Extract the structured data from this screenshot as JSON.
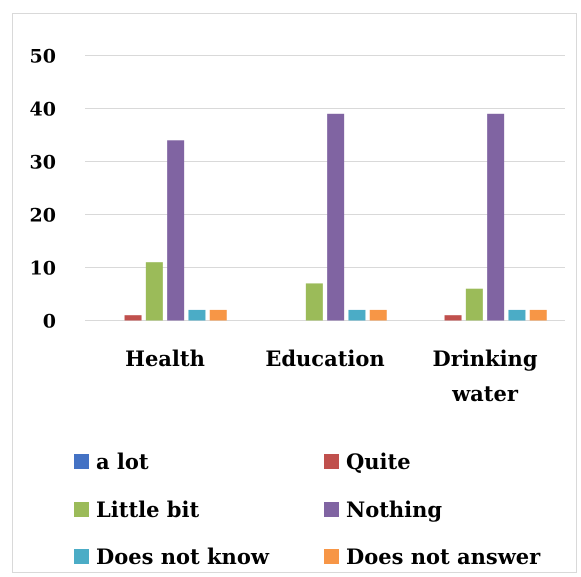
{
  "chart_data": {
    "type": "bar",
    "categories": [
      [
        "Health"
      ],
      [
        "Education"
      ],
      [
        "Drinking",
        "water"
      ]
    ],
    "ylim": [
      0,
      50
    ],
    "yticks": [
      0,
      10,
      20,
      30,
      40,
      50
    ],
    "grid": true,
    "legend_position": "bottom",
    "series": [
      {
        "name": "a lot",
        "color": "#4472c4",
        "values": [
          0,
          0,
          0
        ]
      },
      {
        "name": "Quite",
        "color": "#c0504d",
        "values": [
          1,
          0,
          1
        ]
      },
      {
        "name": "Little bit",
        "color": "#9bbb59",
        "values": [
          11,
          7,
          6
        ]
      },
      {
        "name": "Nothing",
        "color": "#8064a2",
        "values": [
          34,
          39,
          39
        ]
      },
      {
        "name": "Does not know",
        "color": "#4bacc6",
        "values": [
          2,
          2,
          2
        ]
      },
      {
        "name": "Does not answer",
        "color": "#f79646",
        "values": [
          2,
          2,
          2
        ]
      }
    ]
  }
}
